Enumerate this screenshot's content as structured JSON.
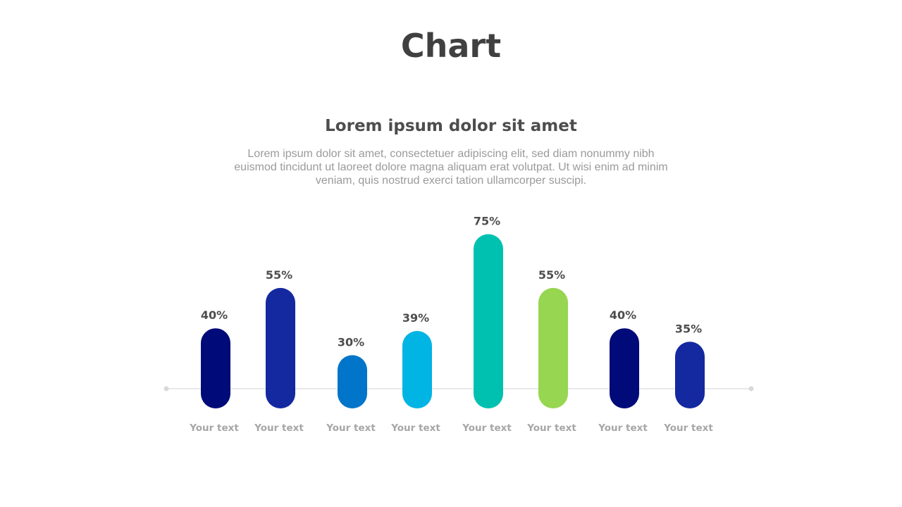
{
  "slide": {
    "title": "Chart",
    "subtitle": "Lorem ipsum dolor sit amet",
    "body_lines": [
      "Lorem ipsum dolor sit amet, consectetuer adipiscing elit, sed diam nonummy nibh",
      "euismod tincidunt ut laoreet dolore magna aliquam erat volutpat. Ut wisi enim ad minim",
      "veniam, quis nostrud exerci tation ullamcorper suscipi."
    ]
  },
  "chart_data": {
    "type": "bar",
    "title": "",
    "xlabel": "",
    "ylabel": "",
    "categories": [
      "Your text",
      "Your text",
      "Your text",
      "Your text",
      "Your text",
      "Your text",
      "Your text",
      "Your text"
    ],
    "values": [
      40,
      55,
      30,
      39,
      75,
      55,
      40,
      35
    ],
    "value_labels": [
      "40%",
      "55%",
      "30%",
      "39%",
      "75%",
      "55%",
      "40%",
      "35%"
    ],
    "unit": "%",
    "ylim": [
      0,
      100
    ],
    "grid": false,
    "colors": [
      "#000a78",
      "#1428a0",
      "#0075c9",
      "#00b4e4",
      "#00c1b0",
      "#96d650",
      "#000a78",
      "#1428a0"
    ],
    "baseline_color": "#d9d9d9"
  }
}
